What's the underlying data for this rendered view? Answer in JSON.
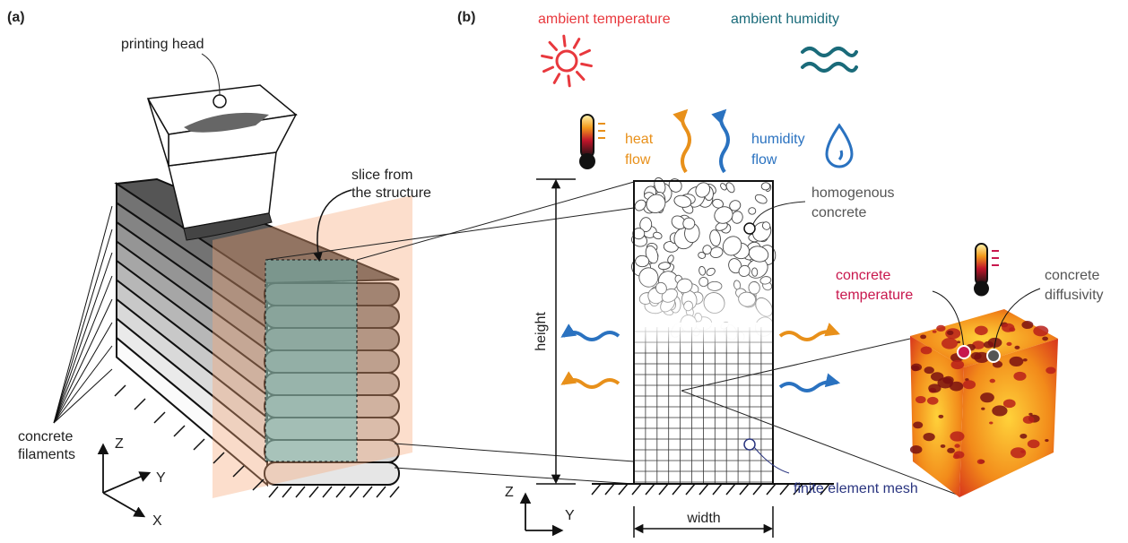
{
  "panel_a": {
    "label": "(a)",
    "printing_head": "printing head",
    "slice_label": [
      "slice from",
      "the structure"
    ],
    "filaments_label": [
      "concrete",
      "filaments"
    ],
    "axes": {
      "z": "Z",
      "y": "Y",
      "x": "X"
    }
  },
  "panel_b": {
    "label": "(b)",
    "ambient_temperature": "ambient temperature",
    "ambient_humidity": "ambient humidity",
    "heat_flow": [
      "heat",
      "flow"
    ],
    "humidity_flow": [
      "humidity",
      "flow"
    ],
    "homogenous_concrete": [
      "homogenous",
      "concrete"
    ],
    "height": "height",
    "width": "width",
    "finite_element_mesh": "finite element mesh",
    "concrete_temperature": [
      "concrete",
      "temperature"
    ],
    "concrete_diffusivity": [
      "concrete",
      "diffusivity"
    ],
    "axes": {
      "z": "Z",
      "y": "Y"
    }
  }
}
